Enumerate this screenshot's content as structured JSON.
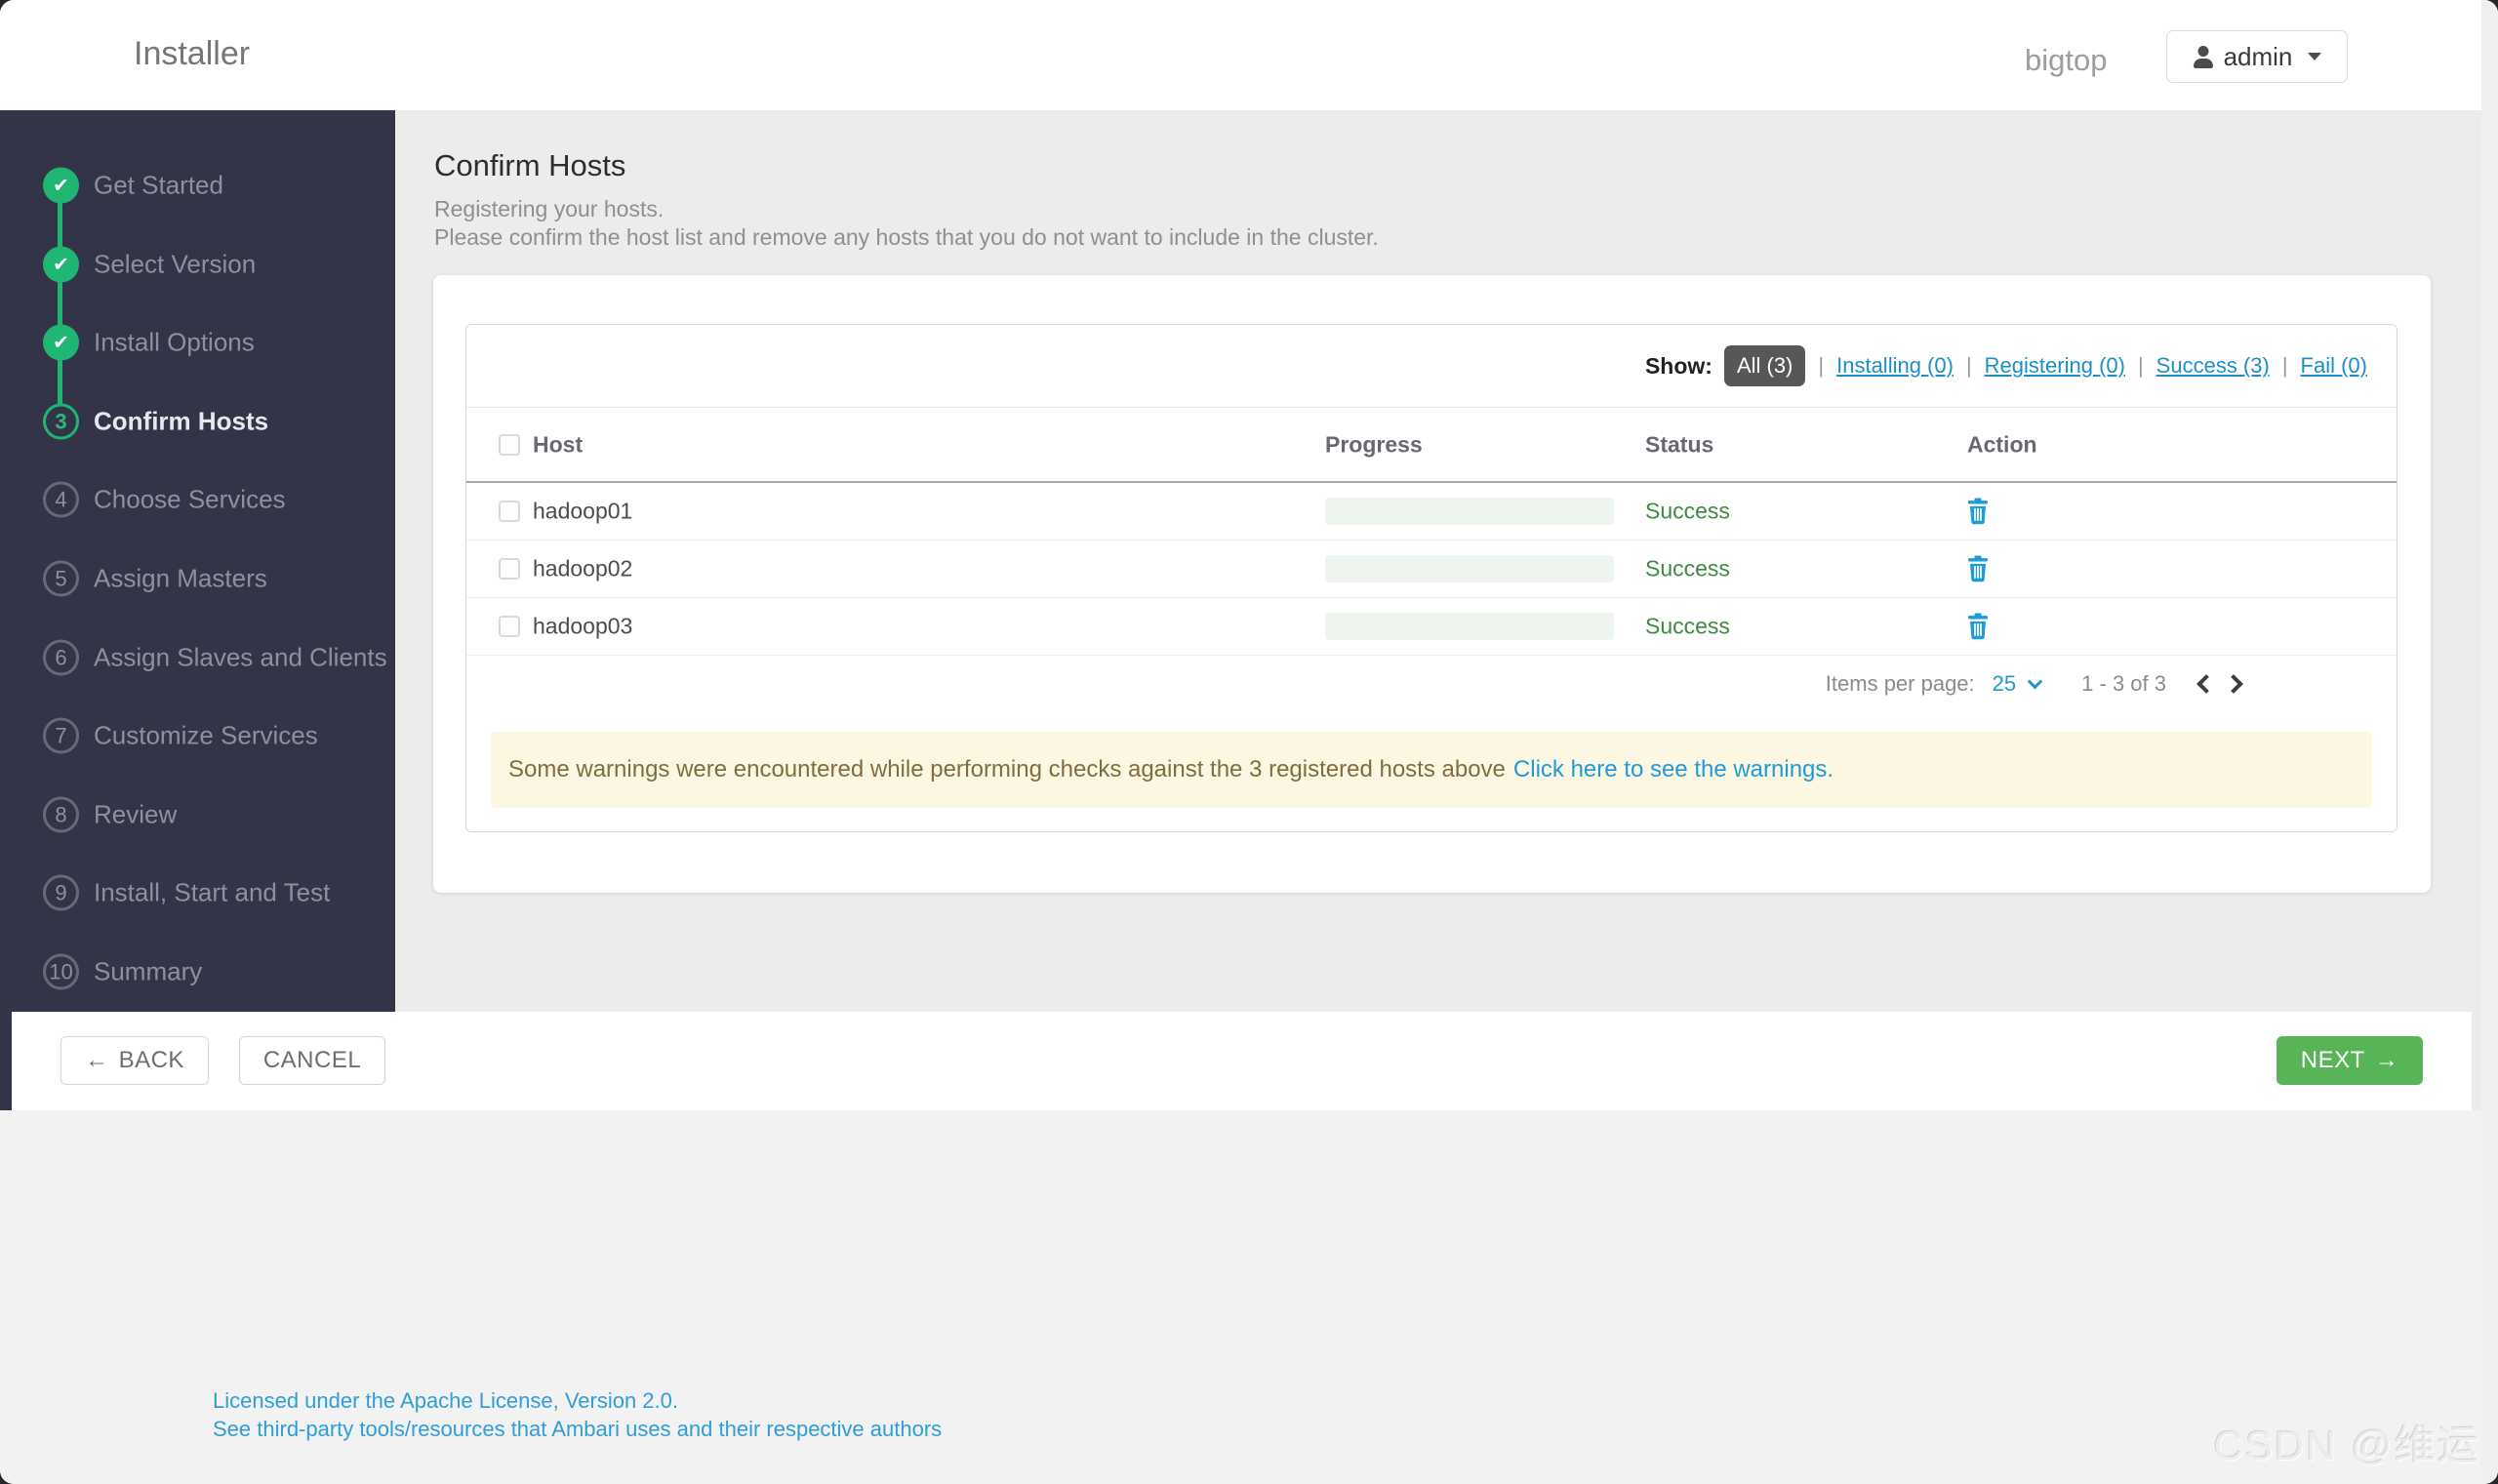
{
  "header": {
    "title": "Installer",
    "cluster_name": "bigtop",
    "user": "admin"
  },
  "icons": {
    "check": "✔"
  },
  "sidebar": {
    "steps": [
      {
        "label": "Get Started",
        "state": "done"
      },
      {
        "label": "Select Version",
        "state": "done"
      },
      {
        "label": "Install Options",
        "state": "done"
      },
      {
        "label": "Confirm Hosts",
        "num": "3",
        "state": "active"
      },
      {
        "label": "Choose Services",
        "num": "4",
        "state": "todo"
      },
      {
        "label": "Assign Masters",
        "num": "5",
        "state": "todo"
      },
      {
        "label": "Assign Slaves and Clients",
        "num": "6",
        "state": "todo"
      },
      {
        "label": "Customize Services",
        "num": "7",
        "state": "todo"
      },
      {
        "label": "Review",
        "num": "8",
        "state": "todo"
      },
      {
        "label": "Install, Start and Test",
        "num": "9",
        "state": "todo"
      },
      {
        "label": "Summary",
        "num": "10",
        "state": "todo"
      }
    ]
  },
  "page": {
    "title": "Confirm Hosts",
    "subtitle1": "Registering your hosts.",
    "subtitle2": "Please confirm the host list and remove any hosts that you do not want to include in the cluster."
  },
  "filters": {
    "label": "Show:",
    "separator": "|",
    "items": [
      {
        "label": "All (3)",
        "active": true
      },
      {
        "label": "Installing (0)"
      },
      {
        "label": "Registering (0)"
      },
      {
        "label": "Success (3)"
      },
      {
        "label": "Fail (0)"
      }
    ]
  },
  "table": {
    "headers": [
      "Host",
      "Progress",
      "Status",
      "Action"
    ],
    "rows": [
      {
        "host": "hadoop01",
        "progress": 100,
        "status": "Success"
      },
      {
        "host": "hadoop02",
        "progress": 100,
        "status": "Success"
      },
      {
        "host": "hadoop03",
        "progress": 100,
        "status": "Success"
      }
    ]
  },
  "pagination": {
    "items_per_page_label": "Items per page:",
    "page_size": "25",
    "range": "1 - 3 of 3"
  },
  "warning": {
    "text": "Some warnings were encountered while performing checks against the 3 registered hosts above",
    "link": "Click here to see the warnings."
  },
  "actions": {
    "back": "BACK",
    "back_arrow": "←",
    "cancel": "CANCEL",
    "next": "NEXT",
    "next_arrow": "→"
  },
  "footer": {
    "license": "Licensed under the Apache License, Version 2.0.",
    "third_party": "See third-party tools/resources that Ambari uses and their respective authors"
  },
  "watermark": "CSDN @维运",
  "colors": {
    "accent_green": "#1fb573",
    "progress_green": "#57b157",
    "button_green": "#57b457",
    "link_blue": "#1b8fc9",
    "trash_blue": "#1f9cd7",
    "warning_bg": "#fbf7e2",
    "warning_text": "#7f6e3f",
    "sidebar_bg": "#333447",
    "status_green": "#3f8a41"
  }
}
